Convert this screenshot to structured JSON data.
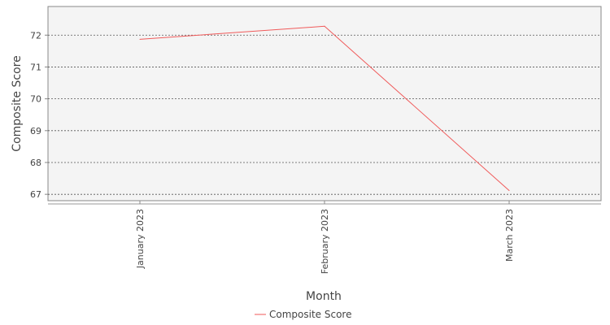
{
  "chart_data": {
    "type": "line",
    "categories": [
      "January 2023",
      "February 2023",
      "March 2023"
    ],
    "series": [
      {
        "name": "Composite Score",
        "values": [
          71.87,
          72.28,
          67.12
        ],
        "color": "#f05a5a"
      }
    ],
    "xlabel": "Month",
    "ylabel": "Composite Score",
    "ylim": [
      66.8,
      72.9
    ],
    "yticks": [
      67,
      68,
      69,
      70,
      71,
      72
    ],
    "grid": true,
    "legend": "bottom-center",
    "background": "#f4f4f4"
  }
}
